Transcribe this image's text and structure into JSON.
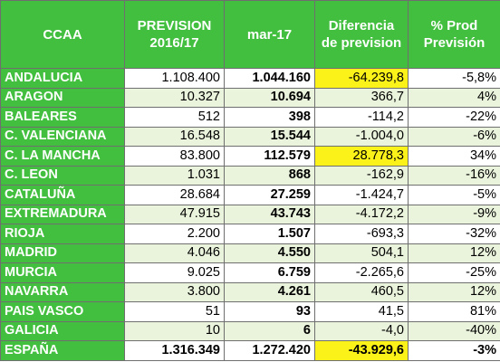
{
  "colors": {
    "header_bg": "#43bf3f",
    "row_alt": "#eaf3dc",
    "highlight": "#fbf21a"
  },
  "headers": [
    "CCAA",
    "PREVISION 2016/17",
    "mar-17",
    "Diferencia de prevision",
    "% Prod Previsión"
  ],
  "rows": [
    {
      "ccaa": "ANDALUCIA",
      "prevision": "1.108.400",
      "mar17": "1.044.160",
      "diferencia": "-64.239,8",
      "pct": "-5,8%",
      "highlight": true
    },
    {
      "ccaa": "ARAGON",
      "prevision": "10.327",
      "mar17": "10.694",
      "diferencia": "366,7",
      "pct": "4%",
      "highlight": false
    },
    {
      "ccaa": "BALEARES",
      "prevision": "512",
      "mar17": "398",
      "diferencia": "-114,2",
      "pct": "-22%",
      "highlight": false
    },
    {
      "ccaa": "C. VALENCIANA",
      "prevision": "16.548",
      "mar17": "15.544",
      "diferencia": "-1.004,0",
      "pct": "-6%",
      "highlight": false
    },
    {
      "ccaa": "C. LA MANCHA",
      "prevision": "83.800",
      "mar17": "112.579",
      "diferencia": "28.778,3",
      "pct": "34%",
      "highlight": true
    },
    {
      "ccaa": "C. LEON",
      "prevision": "1.031",
      "mar17": "868",
      "diferencia": "-162,9",
      "pct": "-16%",
      "highlight": false
    },
    {
      "ccaa": "CATALUÑA",
      "prevision": "28.684",
      "mar17": "27.259",
      "diferencia": "-1.424,7",
      "pct": "-5%",
      "highlight": false
    },
    {
      "ccaa": "EXTREMADURA",
      "prevision": "47.915",
      "mar17": "43.743",
      "diferencia": "-4.172,2",
      "pct": "-9%",
      "highlight": false
    },
    {
      "ccaa": "RIOJA",
      "prevision": "2.200",
      "mar17": "1.507",
      "diferencia": "-693,3",
      "pct": "-32%",
      "highlight": false
    },
    {
      "ccaa": "MADRID",
      "prevision": "4.046",
      "mar17": "4.550",
      "diferencia": "504,1",
      "pct": "12%",
      "highlight": false
    },
    {
      "ccaa": "MURCIA",
      "prevision": "9.025",
      "mar17": "6.759",
      "diferencia": "-2.265,6",
      "pct": "-25%",
      "highlight": false
    },
    {
      "ccaa": "NAVARRA",
      "prevision": "3.800",
      "mar17": "4.261",
      "diferencia": "460,5",
      "pct": "12%",
      "highlight": false
    },
    {
      "ccaa": "PAIS VASCO",
      "prevision": "51",
      "mar17": "93",
      "diferencia": "41,5",
      "pct": "81%",
      "highlight": false
    },
    {
      "ccaa": "GALICIA",
      "prevision": "10",
      "mar17": "6",
      "diferencia": "-4,0",
      "pct": "-40%",
      "highlight": false
    }
  ],
  "total": {
    "ccaa": "ESPAÑA",
    "prevision": "1.316.349",
    "mar17": "1.272.420",
    "diferencia": "-43.929,6",
    "pct": "-3%",
    "highlight": true
  }
}
